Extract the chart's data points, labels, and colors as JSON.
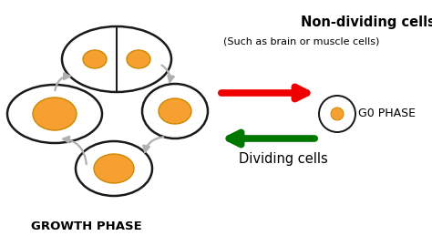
{
  "bg_color": "#ffffff",
  "cell_edge_color": "#1a1a1a",
  "nucleus_color": "#f5a030",
  "nucleus_edge": "#cc8800",
  "arrow_gray": "#b0b0b0",
  "arrow_red": "#ee0000",
  "arrow_green": "#007700",
  "title_growth": "GROWTH PHASE",
  "title_nondiv": "Non-dividing cells",
  "subtitle_nondiv": "(Such as brain or muscle cells)",
  "label_g0": "G0 PHASE",
  "label_dividing": "Dividing cells",
  "cell_lw": 1.8,
  "nucleus_lw": 1.0,
  "figw": 4.74,
  "figh": 2.7,
  "dpi": 100
}
